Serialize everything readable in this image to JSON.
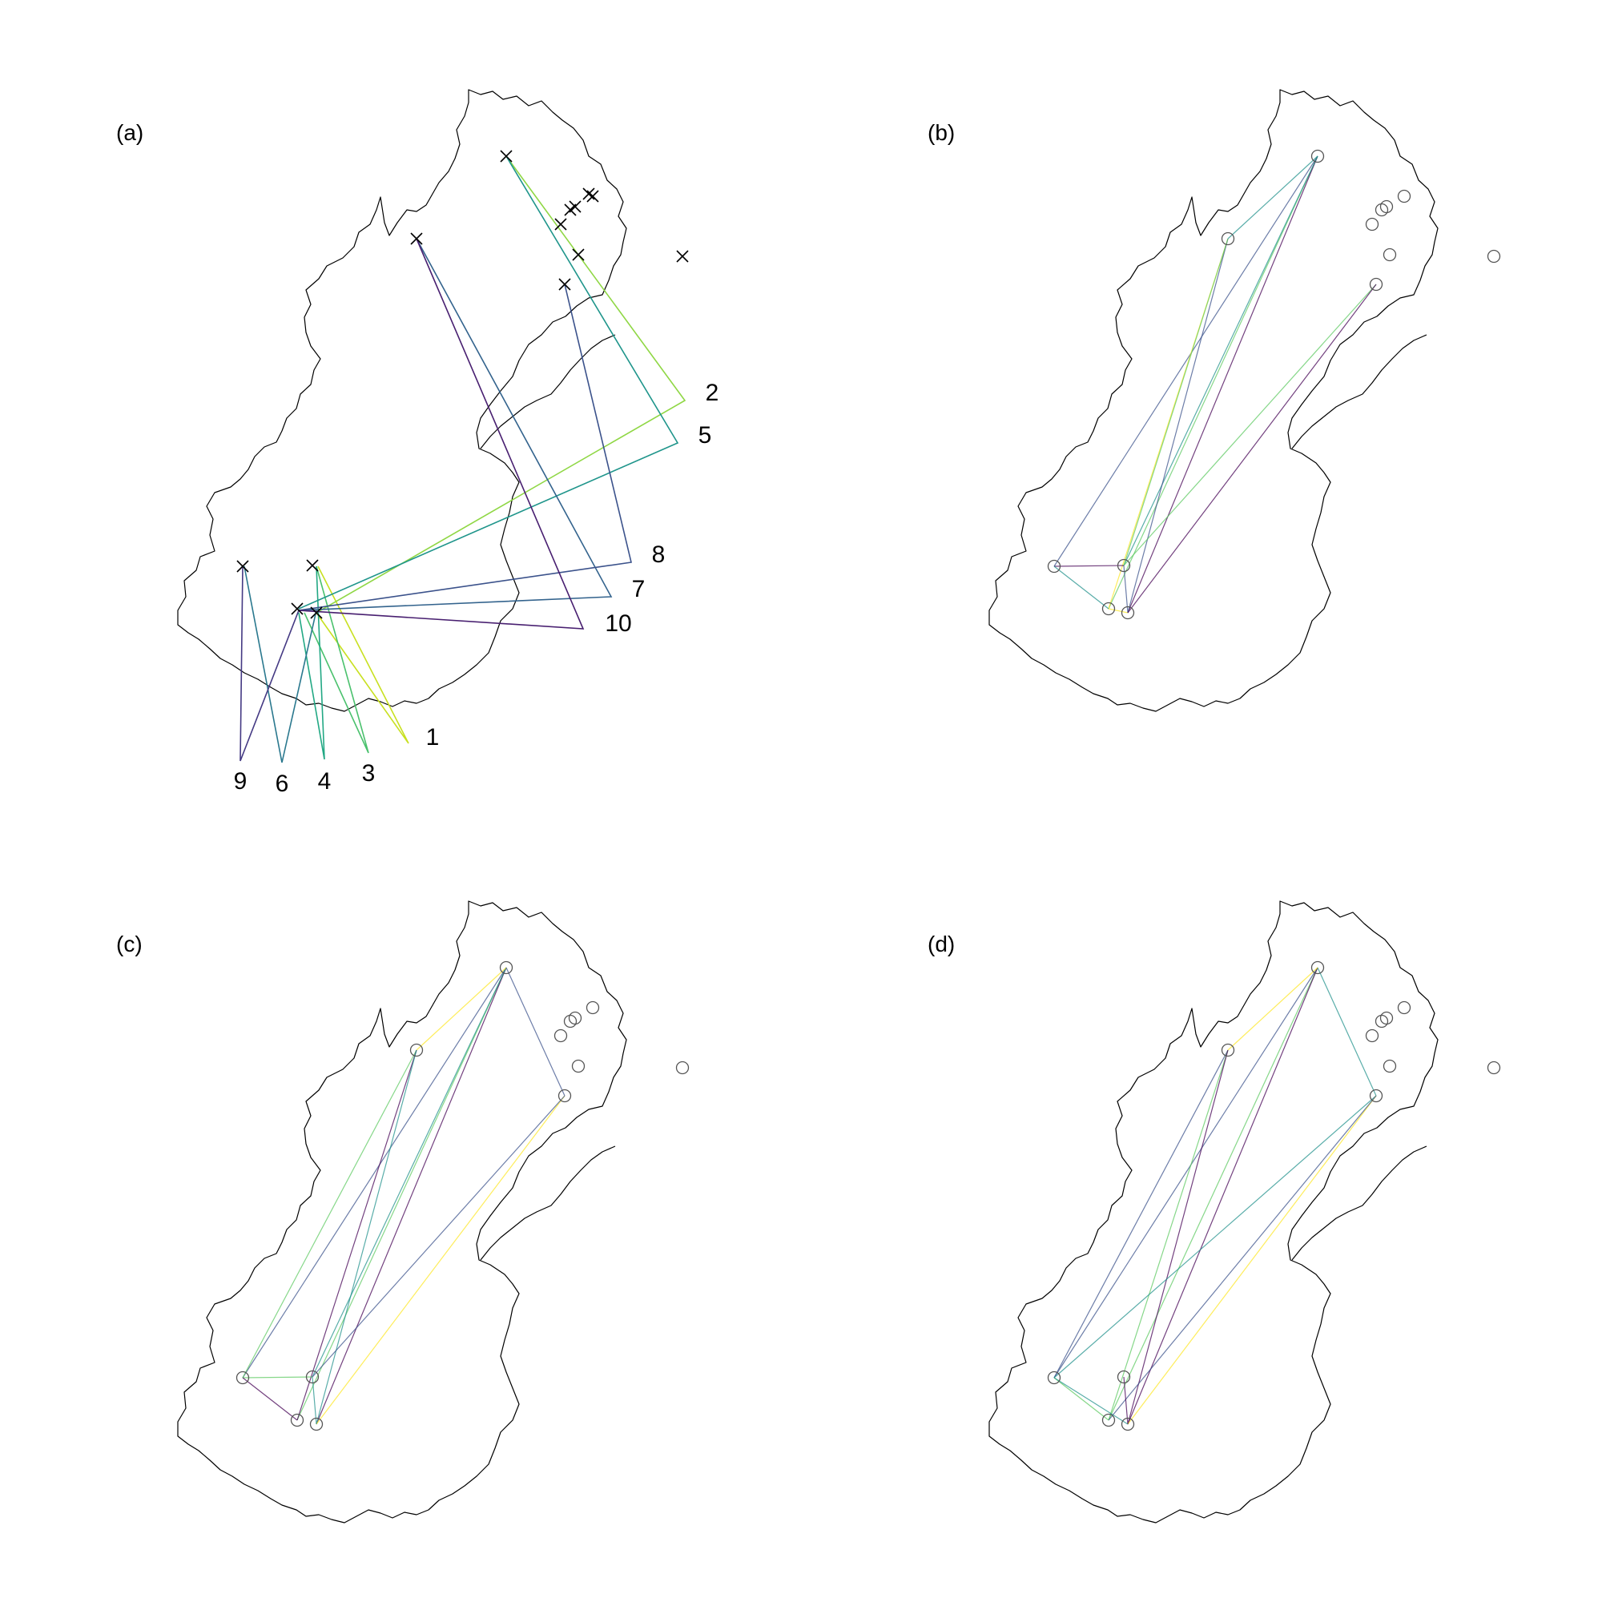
{
  "figure": {
    "colors": {
      "outline": "#000000",
      "marker": "#000000",
      "circle": "#555555",
      "palette": [
        "#440154",
        "#3b528b",
        "#21918c",
        "#5ec962",
        "#fde725"
      ]
    },
    "panels": [
      {
        "id": "a",
        "label": "(a)",
        "markers": "cross",
        "routes": [
          {
            "label": "1",
            "color": "#c8e020"
          },
          {
            "label": "2",
            "color": "#8fd744"
          },
          {
            "label": "3",
            "color": "#4ac16d"
          },
          {
            "label": "4",
            "color": "#22a884"
          },
          {
            "label": "5",
            "color": "#1f958b"
          },
          {
            "label": "6",
            "color": "#2a788e"
          },
          {
            "label": "7",
            "color": "#33638d"
          },
          {
            "label": "8",
            "color": "#3b528b"
          },
          {
            "label": "9",
            "color": "#443983"
          },
          {
            "label": "10",
            "color": "#481f70"
          }
        ]
      },
      {
        "id": "b",
        "label": "(b)",
        "markers": "circle"
      },
      {
        "id": "c",
        "label": "(c)",
        "markers": "circle"
      },
      {
        "id": "d",
        "label": "(d)",
        "markers": "circle"
      }
    ]
  }
}
